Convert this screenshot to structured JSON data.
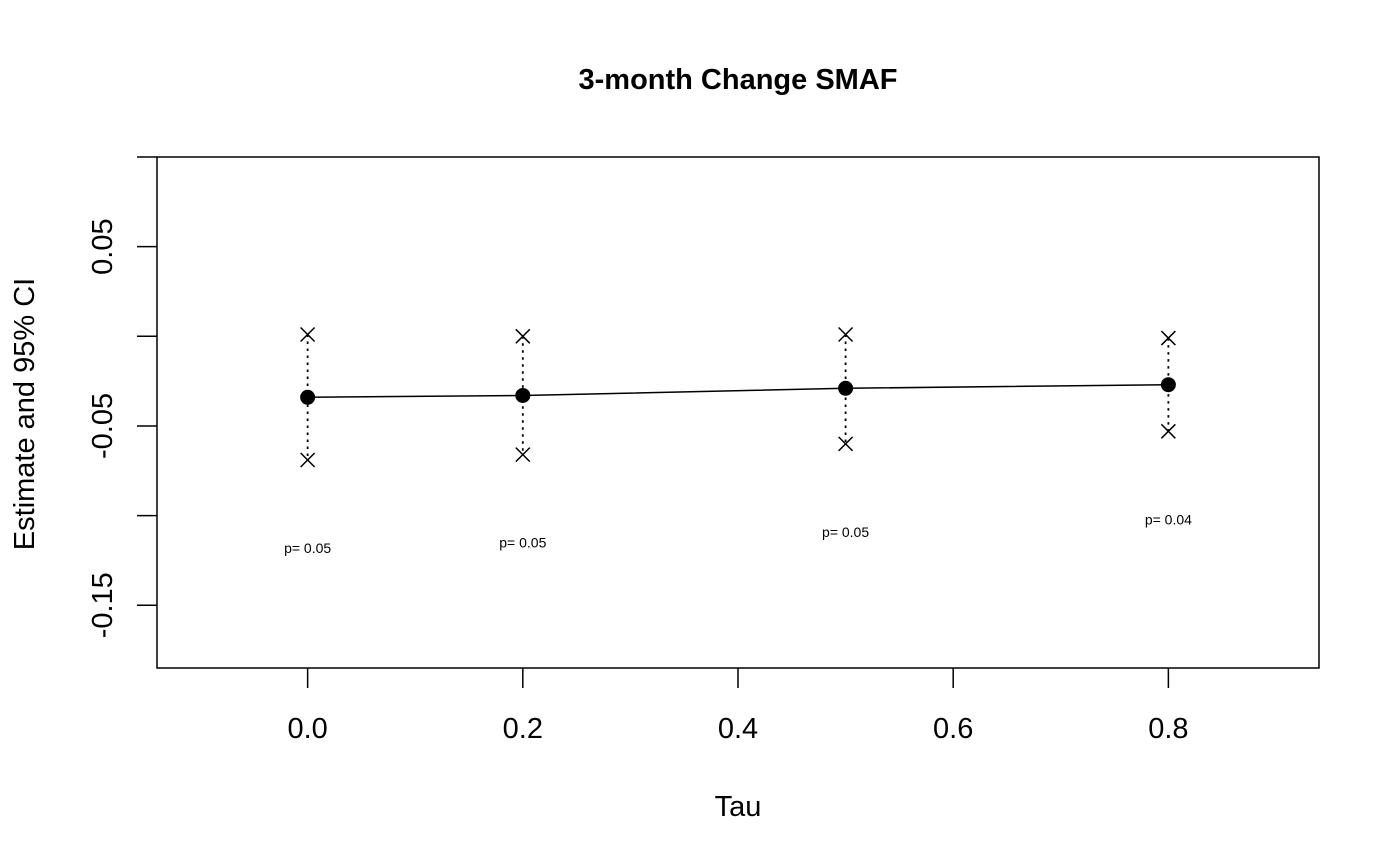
{
  "chart_data": {
    "type": "scatter",
    "title": "3-month Change SMAF",
    "xlabel": "Tau",
    "ylabel": "Estimate and 95% CI",
    "xlim": [
      -0.14,
      0.94
    ],
    "ylim": [
      -0.185,
      0.1
    ],
    "x_ticks": [
      0.0,
      0.2,
      0.4,
      0.6,
      0.8
    ],
    "x_tick_labels": [
      "0.0",
      "0.2",
      "0.4",
      "0.6",
      "0.8"
    ],
    "y_ticks": [
      -0.15,
      -0.1,
      -0.05,
      0.0,
      0.05,
      0.1
    ],
    "y_tick_labels": [
      "-0.15",
      "",
      "-0.05",
      "",
      "0.05",
      ""
    ],
    "grid": false,
    "legend": "none",
    "colors": {
      "line": "#000000",
      "point": "#000000",
      "background": "#ffffff"
    },
    "points": [
      {
        "x": 0.0,
        "estimate": -0.034,
        "ci_lower": -0.069,
        "ci_upper": 0.001,
        "annotation": "p= 0.05"
      },
      {
        "x": 0.2,
        "estimate": -0.033,
        "ci_lower": -0.066,
        "ci_upper": 0.0,
        "annotation": "p= 0.05"
      },
      {
        "x": 0.5,
        "estimate": -0.029,
        "ci_lower": -0.06,
        "ci_upper": 0.001,
        "annotation": "p= 0.05"
      },
      {
        "x": 0.8,
        "estimate": -0.027,
        "ci_lower": -0.053,
        "ci_upper": -0.001,
        "annotation": "p= 0.04"
      }
    ]
  }
}
